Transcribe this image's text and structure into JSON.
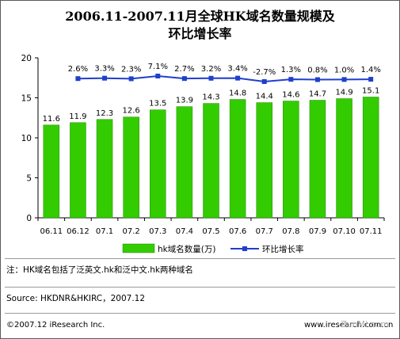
{
  "title_line1": "2006.11-2007.11月全球HK域名数量规模及",
  "title_line2": "环比增长率",
  "note": "注：HK域名包括了泛英文.hk和泛中文.hk两种域名",
  "source": "Source: HKDNR&HKIRC，2007.12",
  "copyright": "©2007.12 iResearch Inc.",
  "website": "www.iresearch.com.cn",
  "watermark": "ZunMi.com",
  "colors": {
    "bar": "#33CC00",
    "line": "#1F3FCC"
  },
  "chart_data": {
    "type": "bar+line",
    "categories": [
      "06.11",
      "06.12",
      "07.1",
      "07.2",
      "07.3",
      "07.4",
      "07.5",
      "07.6",
      "07.7",
      "07.8",
      "07.9",
      "07.10",
      "07.11"
    ],
    "ylim": [
      0,
      20
    ],
    "yticks": [
      0,
      5,
      10,
      15,
      20
    ],
    "series": [
      {
        "name": "hk域名数量(万)",
        "type": "bar",
        "values": [
          11.6,
          11.9,
          12.3,
          12.6,
          13.5,
          13.9,
          14.3,
          14.8,
          14.4,
          14.6,
          14.7,
          14.9,
          15.1
        ],
        "labels": [
          "11.6",
          "11.9",
          "12.3",
          "12.6",
          "13.5",
          "13.9",
          "14.3",
          "14.8",
          "14.4",
          "14.6",
          "14.7",
          "14.9",
          "15.1"
        ]
      },
      {
        "name": "环比增长率",
        "type": "line",
        "values": [
          null,
          2.6,
          3.3,
          2.3,
          7.1,
          2.7,
          3.2,
          3.4,
          -2.7,
          1.3,
          0.8,
          1.0,
          1.4
        ],
        "labels": [
          "",
          "2.6%",
          "3.3%",
          "2.3%",
          "7.1%",
          "2.7%",
          "3.2%",
          "3.4%",
          "-2.7%",
          "1.3%",
          "0.8%",
          "1.0%",
          "1.4%"
        ]
      }
    ],
    "legend_position": "bottom",
    "grid": false
  }
}
